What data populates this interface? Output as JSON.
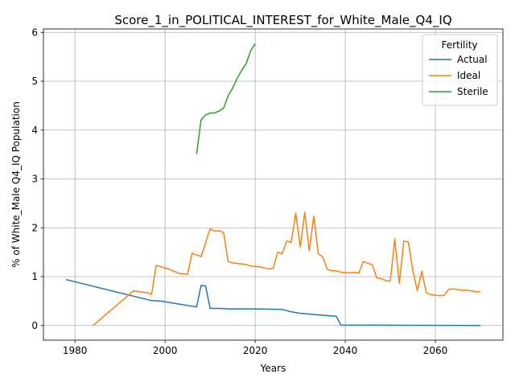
{
  "chart_data": {
    "type": "line",
    "title": "Score_1_in_POLITICAL_INTEREST_for_White_Male_Q4_IQ",
    "xlabel": "Years",
    "ylabel": "% of White_Male Q4_IQ Population",
    "xlim": [
      1973,
      2075
    ],
    "ylim": [
      -0.3,
      6.07
    ],
    "xticks": [
      1980,
      2000,
      2020,
      2040,
      2060
    ],
    "yticks": [
      0,
      1,
      2,
      3,
      4,
      5,
      6
    ],
    "grid": true,
    "legend": {
      "title": "Fertility",
      "placement": "top-right"
    },
    "series": [
      {
        "name": "Actual",
        "color": "#1f77b4",
        "points": [
          [
            1978,
            0.94
          ],
          [
            1997,
            0.51
          ],
          [
            1999,
            0.5
          ],
          [
            2003,
            0.44
          ],
          [
            2007,
            0.38
          ],
          [
            2008,
            0.82
          ],
          [
            2009,
            0.81
          ],
          [
            2010,
            0.35
          ],
          [
            2012,
            0.35
          ],
          [
            2014,
            0.34
          ],
          [
            2020,
            0.34
          ],
          [
            2026,
            0.33
          ],
          [
            2028,
            0.28
          ],
          [
            2030,
            0.25
          ],
          [
            2035,
            0.21
          ],
          [
            2038,
            0.19
          ],
          [
            2039,
            0.01
          ],
          [
            2070,
            0.0
          ]
        ]
      },
      {
        "name": "Ideal",
        "color": "#ff7f0e",
        "points": [
          [
            1984,
            0.0
          ],
          [
            1993,
            0.71
          ],
          [
            1996,
            0.67
          ],
          [
            1997,
            0.64
          ],
          [
            1998,
            1.23
          ],
          [
            2001,
            1.15
          ],
          [
            2003,
            1.07
          ],
          [
            2005,
            1.05
          ],
          [
            2006,
            1.48
          ],
          [
            2008,
            1.41
          ],
          [
            2010,
            1.98
          ],
          [
            2011,
            1.93
          ],
          [
            2012,
            1.94
          ],
          [
            2013,
            1.9
          ],
          [
            2014,
            1.31
          ],
          [
            2015,
            1.28
          ],
          [
            2018,
            1.25
          ],
          [
            2019,
            1.22
          ],
          [
            2021,
            1.2
          ],
          [
            2023,
            1.16
          ],
          [
            2024,
            1.17
          ],
          [
            2025,
            1.5
          ],
          [
            2026,
            1.47
          ],
          [
            2027,
            1.73
          ],
          [
            2028,
            1.7
          ],
          [
            2029,
            2.3
          ],
          [
            2030,
            1.61
          ],
          [
            2031,
            2.32
          ],
          [
            2032,
            1.53
          ],
          [
            2033,
            2.24
          ],
          [
            2034,
            1.47
          ],
          [
            2035,
            1.4
          ],
          [
            2036,
            1.15
          ],
          [
            2037,
            1.12
          ],
          [
            2038,
            1.12
          ],
          [
            2039,
            1.09
          ],
          [
            2041,
            1.08
          ],
          [
            2042,
            1.09
          ],
          [
            2043,
            1.07
          ],
          [
            2044,
            1.31
          ],
          [
            2046,
            1.24
          ],
          [
            2047,
            0.97
          ],
          [
            2048,
            0.96
          ],
          [
            2049,
            0.92
          ],
          [
            2050,
            0.91
          ],
          [
            2051,
            1.77
          ],
          [
            2052,
            0.86
          ],
          [
            2053,
            1.73
          ],
          [
            2054,
            1.71
          ],
          [
            2055,
            1.12
          ],
          [
            2056,
            0.71
          ],
          [
            2057,
            1.11
          ],
          [
            2058,
            0.67
          ],
          [
            2059,
            0.63
          ],
          [
            2061,
            0.61
          ],
          [
            2062,
            0.62
          ],
          [
            2063,
            0.74
          ],
          [
            2064,
            0.75
          ],
          [
            2066,
            0.72
          ],
          [
            2067,
            0.72
          ],
          [
            2068,
            0.71
          ],
          [
            2069,
            0.69
          ],
          [
            2070,
            0.69
          ]
        ]
      },
      {
        "name": "Sterile",
        "color": "#2ca02c",
        "points": [
          [
            2007,
            3.51
          ],
          [
            2008,
            4.21
          ],
          [
            2009,
            4.31
          ],
          [
            2010,
            4.35
          ],
          [
            2011,
            4.35
          ],
          [
            2012,
            4.39
          ],
          [
            2013,
            4.45
          ],
          [
            2014,
            4.7
          ],
          [
            2015,
            4.86
          ],
          [
            2016,
            5.06
          ],
          [
            2017,
            5.22
          ],
          [
            2018,
            5.36
          ],
          [
            2019,
            5.62
          ],
          [
            2020,
            5.77
          ]
        ]
      }
    ]
  }
}
